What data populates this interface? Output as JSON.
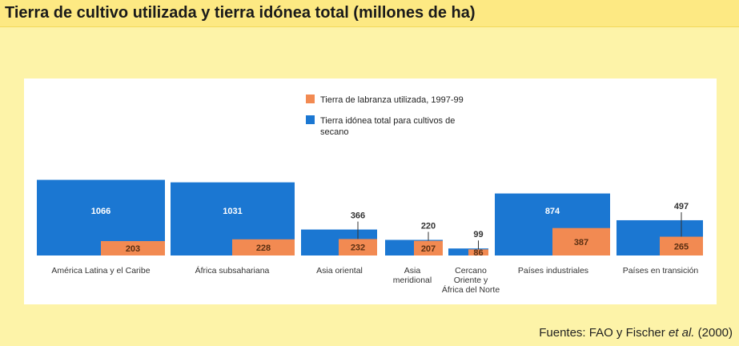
{
  "header": {
    "title": "Tierra de cultivo utilizada y tierra idónea total (millones de ha)"
  },
  "source": {
    "prefix": "Fuentes: FAO y Fischer ",
    "italic": "et al.",
    "suffix": " (2000)"
  },
  "colors": {
    "total": "#1b77d2",
    "used": "#f28a52",
    "panel": "#ffffff",
    "background": "#fdf3a8"
  },
  "chart_data": {
    "type": "bar",
    "title": "Tierra de cultivo utilizada y tierra idónea total (millones de ha)",
    "units": "millones de ha",
    "legend": [
      {
        "name": "Tierra de labranza utilizada, 1997-99",
        "color": "#f28a52"
      },
      {
        "name": "Tierra idónea total para cultivos de secano",
        "color": "#1b77d2"
      }
    ],
    "legend_position": "top-center",
    "categories": [
      "América Latina y el Caribe",
      "África subsahariana",
      "Asia oriental",
      "Asia meridional",
      "Cercano Oriente y África del Norte",
      "Países industriales",
      "Países en transición"
    ],
    "category_labels": [
      [
        "América Latina y el Caribe"
      ],
      [
        "África subsahariana"
      ],
      [
        "Asia oriental"
      ],
      [
        "Asia",
        "meridional"
      ],
      [
        "Cercano",
        "Oriente y",
        "África del Norte"
      ],
      [
        "Países industriales"
      ],
      [
        "Países en transición"
      ]
    ],
    "series": [
      {
        "name": "Tierra idónea total para cultivos de secano",
        "values": [
          1066,
          1031,
          366,
          220,
          99,
          874,
          497
        ]
      },
      {
        "name": "Tierra de labranza utilizada, 1997-99",
        "values": [
          203,
          228,
          232,
          207,
          86,
          387,
          265
        ]
      }
    ]
  }
}
